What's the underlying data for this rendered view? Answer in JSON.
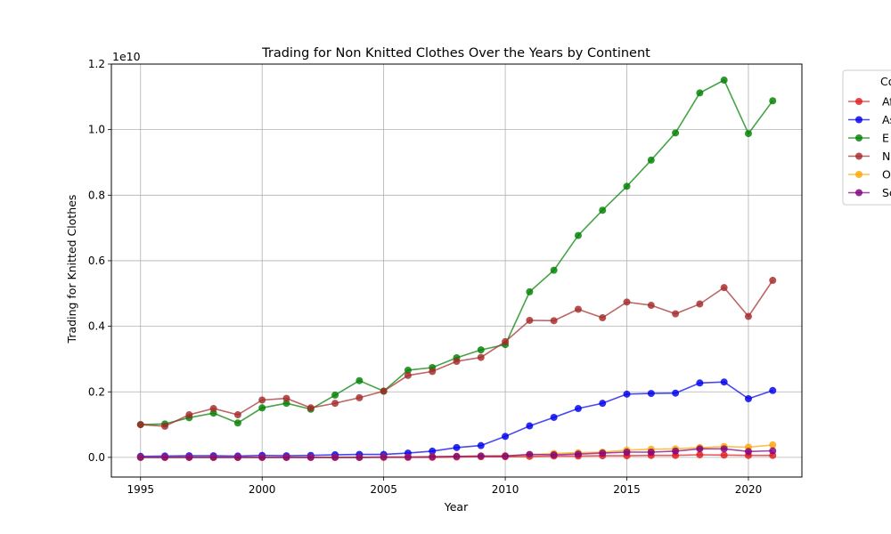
{
  "chart_data": {
    "type": "line",
    "title": "Trading for Non Knitted Clothes Over the Years by Continent",
    "xlabel": "Year",
    "ylabel": "Trading for Knitted Clothes",
    "offset_label": "1e10",
    "xlim": [
      1993.8,
      2022.2
    ],
    "ylim": [
      -0.06,
      1.2
    ],
    "x_ticks": [
      1995,
      2000,
      2005,
      2010,
      2015,
      2020
    ],
    "y_ticks": [
      0.0,
      0.2,
      0.4,
      0.6,
      0.8,
      1.0,
      1.2
    ],
    "y_tick_labels": [
      "0.0",
      "0.2",
      "0.4",
      "0.6",
      "0.8",
      "1.0",
      "1.2"
    ],
    "grid": true,
    "legend_title": "Co",
    "legend_position": "outside-right",
    "x": [
      1995,
      1996,
      1997,
      1998,
      1999,
      2000,
      2001,
      2002,
      2003,
      2004,
      2005,
      2006,
      2007,
      2008,
      2009,
      2010,
      2011,
      2012,
      2013,
      2014,
      2015,
      2016,
      2017,
      2018,
      2019,
      2020,
      2021
    ],
    "series": [
      {
        "name": "Af",
        "color": "#e31a1c",
        "values": [
          0.0,
          0.0,
          0.0,
          0.0,
          0.0,
          0.0,
          0.0,
          0.0,
          0.0,
          0.0,
          0.0,
          0.0,
          0.0,
          0.001,
          0.002,
          0.002,
          0.003,
          0.004,
          0.004,
          0.005,
          0.005,
          0.006,
          0.006,
          0.008,
          0.007,
          0.006,
          0.006
        ]
      },
      {
        "name": "As",
        "color": "#0000ee",
        "values": [
          0.003,
          0.004,
          0.005,
          0.005,
          0.004,
          0.006,
          0.005,
          0.006,
          0.008,
          0.009,
          0.009,
          0.013,
          0.019,
          0.03,
          0.036,
          0.064,
          0.096,
          0.122,
          0.149,
          0.165,
          0.193,
          0.195,
          0.196,
          0.227,
          0.23,
          0.179,
          0.204
        ]
      },
      {
        "name": "E",
        "color": "#008000",
        "values": [
          0.1,
          0.102,
          0.121,
          0.135,
          0.105,
          0.151,
          0.165,
          0.147,
          0.19,
          0.234,
          0.202,
          0.266,
          0.274,
          0.304,
          0.328,
          0.344,
          0.505,
          0.571,
          0.677,
          0.754,
          0.827,
          0.907,
          0.99,
          1.112,
          1.151,
          0.988,
          1.088
        ]
      },
      {
        "name": "N",
        "color": "#a52a2a",
        "values": [
          0.1,
          0.095,
          0.13,
          0.149,
          0.13,
          0.175,
          0.18,
          0.151,
          0.165,
          0.182,
          0.202,
          0.25,
          0.262,
          0.293,
          0.305,
          0.353,
          0.418,
          0.417,
          0.452,
          0.426,
          0.474,
          0.464,
          0.438,
          0.468,
          0.518,
          0.43,
          0.54
        ]
      },
      {
        "name": "O",
        "color": "#ffa500",
        "values": [
          0.0,
          0.0,
          0.0,
          0.0,
          0.0,
          0.0,
          0.0,
          0.0,
          0.0,
          0.0,
          0.001,
          0.001,
          0.002,
          0.003,
          0.004,
          0.005,
          0.008,
          0.012,
          0.014,
          0.016,
          0.022,
          0.025,
          0.026,
          0.03,
          0.033,
          0.031,
          0.038
        ]
      },
      {
        "name": "Sc",
        "color": "#800080",
        "values": [
          0.0,
          0.0,
          0.0,
          0.0,
          0.0,
          0.0,
          0.0,
          0.0,
          0.0,
          0.0,
          0.001,
          0.001,
          0.002,
          0.003,
          0.004,
          0.004,
          0.009,
          0.008,
          0.01,
          0.013,
          0.016,
          0.016,
          0.019,
          0.026,
          0.026,
          0.018,
          0.02
        ]
      }
    ]
  }
}
